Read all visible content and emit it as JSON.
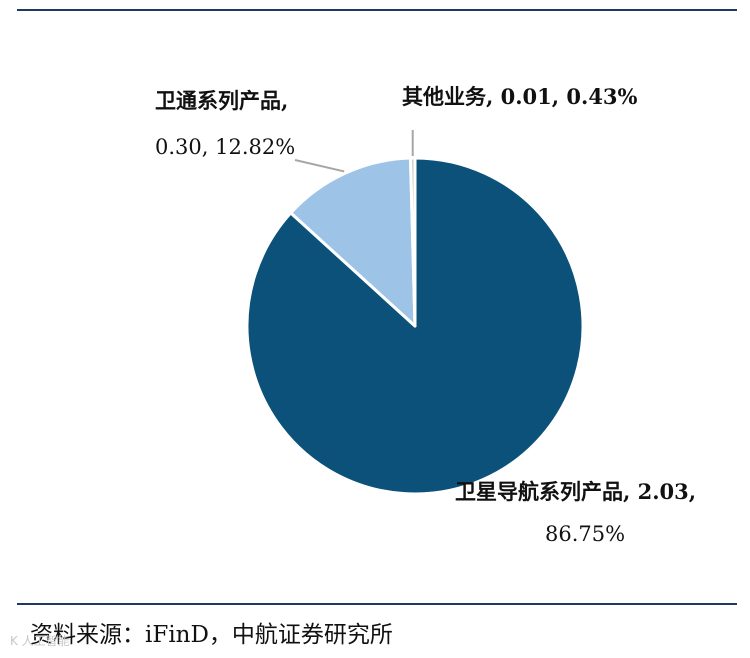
{
  "chart_data": {
    "type": "pie",
    "slices": [
      {
        "category": "卫星导航系列产品",
        "value": 2.03,
        "percent": "86.75%",
        "color": "#0b5179"
      },
      {
        "category": "卫通系列产品",
        "value": 0.3,
        "percent": "12.82%",
        "color": "#9dc3e6"
      },
      {
        "category": "其他业务",
        "value": 0.01,
        "percent": "0.43%",
        "color": "#c9c9c9"
      }
    ],
    "labels": {
      "satnav_line1": "卫星导航系列产品, 2.03,",
      "satnav_line2": "86.75%",
      "satcom_line1": "卫通系列产品,",
      "satcom_line2": "0.30, 12.82%",
      "other": "其他业务, 0.01, 0.43%"
    }
  },
  "source": "资料来源：iFinD，中航证券研究所",
  "watermark": "K 人工智能"
}
